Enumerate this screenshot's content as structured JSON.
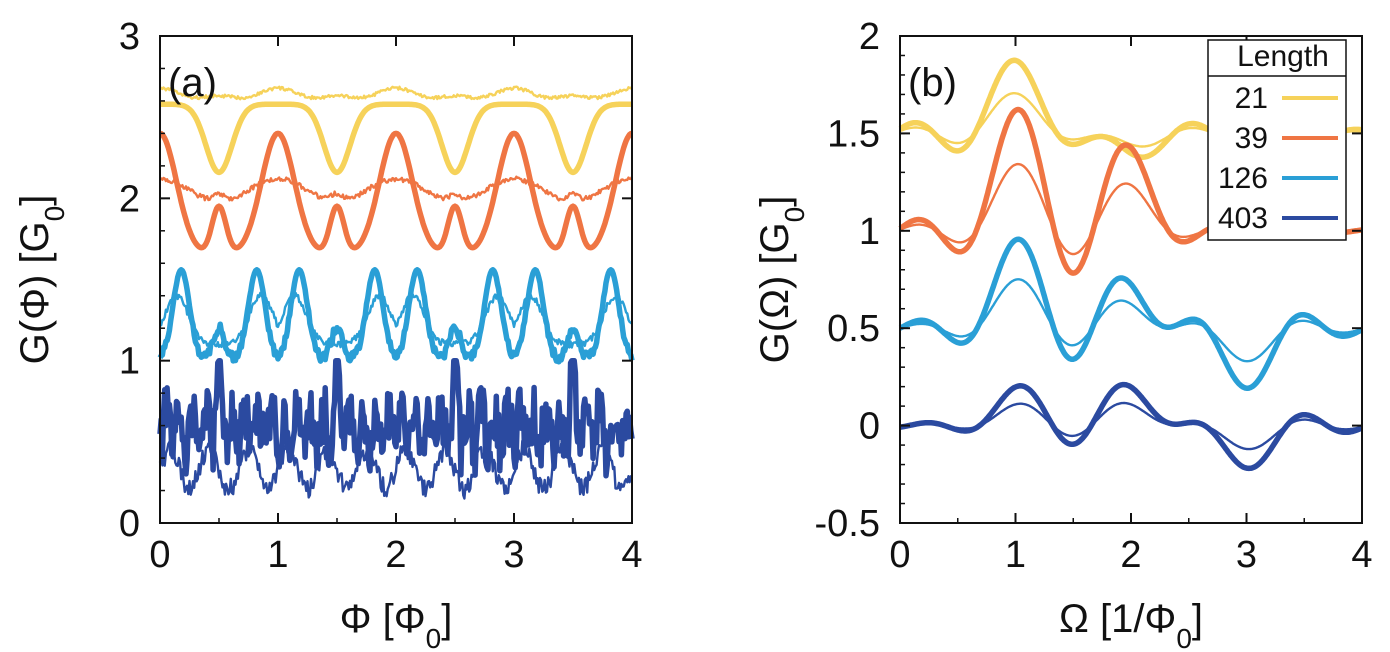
{
  "chart_data": [
    {
      "type": "line",
      "panel_label": "(a)",
      "xlabel": "Φ [Φ",
      "xlabel_sub": "0",
      "xlabel_end": "]",
      "ylabel": "G(Φ) [G",
      "ylabel_sub": "0",
      "ylabel_end": "]",
      "xlim": [
        0,
        4
      ],
      "ylim": [
        0,
        3
      ],
      "xticks": [
        0,
        1,
        2,
        3,
        4
      ],
      "xtick_labels": [
        "0",
        "1",
        "2",
        "3",
        "4"
      ],
      "yticks": [
        0,
        1,
        2,
        3
      ],
      "ytick_labels": [
        "0",
        "1",
        "2",
        "3"
      ],
      "grid": false,
      "series": [
        {
          "length": "21",
          "color": "#f6d25a",
          "style": "thick",
          "offset": 2.58,
          "shape": "dips_at_half_integer",
          "depth": 0.42
        },
        {
          "length": "21",
          "color": "#f6d25a",
          "style": "thin",
          "offset": 2.64,
          "shape": "small_ripple",
          "amplitude": 0.04
        },
        {
          "length": "39",
          "color": "#ef7543",
          "style": "thick",
          "shape": "peaks_near_integer",
          "min": 1.65,
          "max": 2.4
        },
        {
          "length": "39",
          "color": "#ef7543",
          "style": "thin",
          "offset": 2.05,
          "shape": "ripple",
          "amplitude": 0.07
        },
        {
          "length": "126",
          "color": "#2a9fd6",
          "style": "thick",
          "shape": "double_peaks",
          "min": 1.0,
          "max": 1.56
        },
        {
          "length": "126",
          "color": "#2a9fd6",
          "style": "thin",
          "shape": "double_peaks_soft",
          "min": 1.1,
          "max": 1.4
        },
        {
          "length": "403",
          "color": "#2b4aa0",
          "style": "thick",
          "shape": "noisy_spikes",
          "min": 0.0,
          "max": 1.0
        },
        {
          "length": "403",
          "color": "#2b4aa0",
          "style": "thin",
          "shape": "noisy_soft",
          "min": 0.2,
          "max": 0.5
        }
      ]
    },
    {
      "type": "line",
      "panel_label": "(b)",
      "xlabel": "Ω [1/Φ",
      "xlabel_sub": "0",
      "xlabel_end": "]",
      "ylabel": "G(Ω) [G",
      "ylabel_sub": "0",
      "ylabel_end": "]",
      "xlim": [
        0,
        4
      ],
      "ylim": [
        -0.5,
        2
      ],
      "xticks": [
        0,
        1,
        2,
        3,
        4
      ],
      "xtick_labels": [
        "0",
        "1",
        "2",
        "3",
        "4"
      ],
      "yticks": [
        -0.5,
        0,
        0.5,
        1,
        1.5,
        2
      ],
      "ytick_labels": [
        "-0.5",
        "0",
        "0.5",
        "1",
        "1.5",
        "2"
      ],
      "grid": false,
      "legend": {
        "title": "Length",
        "placement": "top-right",
        "entries": [
          {
            "label": "21",
            "color": "#f6d25a"
          },
          {
            "label": "39",
            "color": "#ef7543"
          },
          {
            "label": "126",
            "color": "#2a9fd6"
          },
          {
            "label": "403",
            "color": "#2b4aa0"
          }
        ]
      },
      "series": [
        {
          "length": "21",
          "color": "#f6d25a",
          "offset": 1.5,
          "peaks": [
            [
              1.0,
              0.38
            ],
            [
              2.0,
              -0.12
            ]
          ]
        },
        {
          "length": "39",
          "color": "#ef7543",
          "offset": 1.0,
          "peaks": [
            [
              1.0,
              0.6
            ],
            [
              2.0,
              0.4
            ]
          ]
        },
        {
          "length": "126",
          "color": "#2a9fd6",
          "offset": 0.5,
          "peaks": [
            [
              1.0,
              0.43
            ],
            [
              2.0,
              0.22
            ],
            [
              3.0,
              -0.3
            ]
          ]
        },
        {
          "length": "403",
          "color": "#2b4aa0",
          "offset": 0.0,
          "peaks": [
            [
              1.0,
              0.18
            ],
            [
              2.0,
              0.2
            ],
            [
              3.0,
              -0.22
            ]
          ]
        }
      ]
    }
  ]
}
